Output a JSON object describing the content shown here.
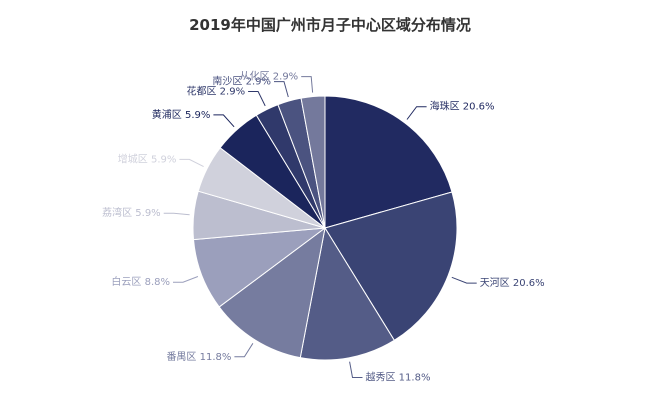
{
  "chart_data": {
    "type": "pie",
    "title": "2019年中国广州市月子中心区域分布情况",
    "start_angle_deg": 0,
    "direction": "clockwise",
    "slices": [
      {
        "label": "海珠区",
        "value": 20.6,
        "display": "海珠区 20.6%",
        "color": "#212a61"
      },
      {
        "label": "天河区",
        "value": 20.6,
        "display": "天河区 20.6%",
        "color": "#3a4474"
      },
      {
        "label": "越秀区",
        "value": 11.8,
        "display": "越秀区 11.8%",
        "color": "#545c87"
      },
      {
        "label": "番禺区",
        "value": 11.8,
        "display": "番禺区 11.8%",
        "color": "#767c9f"
      },
      {
        "label": "白云区",
        "value": 8.8,
        "display": "白云区 8.8%",
        "color": "#9b9fbc"
      },
      {
        "label": "荔湾区",
        "value": 5.9,
        "display": "荔湾区 5.9%",
        "color": "#bcbecf"
      },
      {
        "label": "增城区",
        "value": 5.9,
        "display": "增城区 5.9%",
        "color": "#d0d1dc"
      },
      {
        "label": "黄浦区",
        "value": 5.9,
        "display": "黄浦区 5.9%",
        "color": "#1b255c"
      },
      {
        "label": "花都区",
        "value": 2.9,
        "display": "花都区 2.9%",
        "color": "#30396b"
      },
      {
        "label": "南沙区",
        "value": 2.9,
        "display": "南沙区 2.9%",
        "color": "#4b5380"
      },
      {
        "label": "从化区",
        "value": 2.9,
        "display": "从化区 2.9%",
        "color": "#74799c"
      }
    ]
  }
}
